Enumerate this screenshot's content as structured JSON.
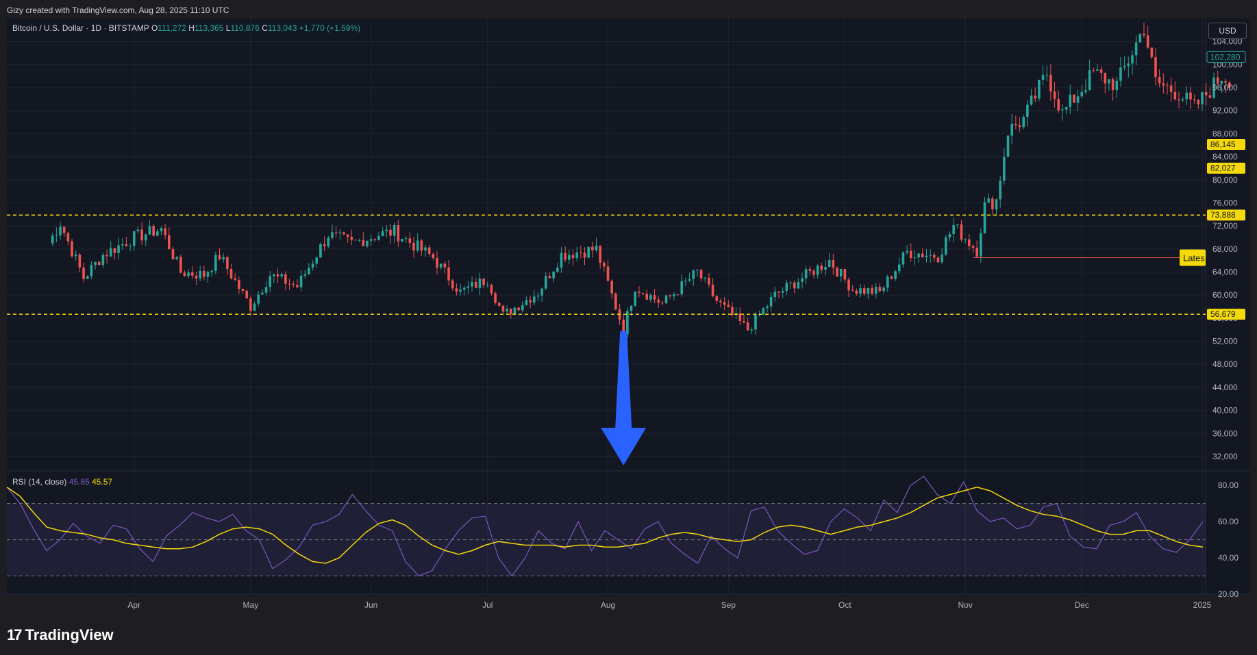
{
  "header": {
    "created_by": "Gizy created with TradingView.com, Aug 28, 2025 11:10 UTC"
  },
  "legend": {
    "symbol": "Bitcoin / U.S. Dollar · 1D · BITSTAMP",
    "open_label": "O",
    "open": "111,272",
    "high_label": "H",
    "high": "113,365",
    "low_label": "L",
    "low": "110,876",
    "close_label": "C",
    "close": "113,043",
    "change": "+1,770 (+1.59%)"
  },
  "currency_button": "USD",
  "rsi_legend": {
    "label": "RSI (14, close)",
    "rsi_value": "45.85",
    "ma_value": "45.57"
  },
  "brand": {
    "logo_text": "TradingView",
    "mark": "17"
  },
  "price_badges": {
    "current": "102,280",
    "level_86": "86,145",
    "level_82": "82,027",
    "level_73": "73,888",
    "level_56": "56,679"
  },
  "latest_marker": "Lates",
  "colors": {
    "up": "#26a69a",
    "down": "#ef5350",
    "level_line": "#f5d90a",
    "rsi_line": "#7e57c2",
    "rsi_ma": "#f5d90a",
    "arrow": "#2962ff",
    "current_price_badge": "#26a69a",
    "background": "#131722"
  },
  "chart_data": [
    {
      "type": "candlestick",
      "title": "Bitcoin / U.S. Dollar · 1D · BITSTAMP",
      "xlabel": "",
      "ylabel": "USD",
      "x_tick_labels": [
        "Apr",
        "May",
        "Jun",
        "Jul",
        "Aug",
        "Sep",
        "Oct",
        "Nov",
        "Dec",
        "2025"
      ],
      "y_tick_labels": [
        "32,000",
        "36,000",
        "40,000",
        "44,000",
        "48,000",
        "52,000",
        "56,000",
        "60,000",
        "64,000",
        "68,000",
        "72,000",
        "76,000",
        "80,000",
        "84,000",
        "88,000",
        "92,000",
        "96,000",
        "100,000",
        "104,000"
      ],
      "ylim": [
        29500,
        108000
      ],
      "grid": true,
      "horizontal_levels": [
        73888,
        56679
      ],
      "annotation_levels": [
        86145,
        82027
      ],
      "latest_line_value": 66500,
      "arrow": {
        "at_date": "2024-08-05",
        "direction": "down"
      },
      "anchors": [
        {
          "date": "2024-03-10",
          "value": 69000
        },
        {
          "date": "2024-03-13",
          "value": 72500
        },
        {
          "date": "2024-03-19",
          "value": 63000
        },
        {
          "date": "2024-03-24",
          "value": 67000
        },
        {
          "date": "2024-04-01",
          "value": 70000
        },
        {
          "date": "2024-04-08",
          "value": 71500
        },
        {
          "date": "2024-04-13",
          "value": 64000
        },
        {
          "date": "2024-04-19",
          "value": 63500
        },
        {
          "date": "2024-04-23",
          "value": 66800
        },
        {
          "date": "2024-05-01",
          "value": 58000
        },
        {
          "date": "2024-05-06",
          "value": 63500
        },
        {
          "date": "2024-05-13",
          "value": 61500
        },
        {
          "date": "2024-05-21",
          "value": 70500
        },
        {
          "date": "2024-05-27",
          "value": 69000
        },
        {
          "date": "2024-06-03",
          "value": 70500
        },
        {
          "date": "2024-06-07",
          "value": 71000
        },
        {
          "date": "2024-06-17",
          "value": 66500
        },
        {
          "date": "2024-06-24",
          "value": 60500
        },
        {
          "date": "2024-07-01",
          "value": 62800
        },
        {
          "date": "2024-07-05",
          "value": 56500
        },
        {
          "date": "2024-07-14",
          "value": 60500
        },
        {
          "date": "2024-07-20",
          "value": 67000
        },
        {
          "date": "2024-07-29",
          "value": 68000
        },
        {
          "date": "2024-08-05",
          "value": 54000
        },
        {
          "date": "2024-08-08",
          "value": 61500
        },
        {
          "date": "2024-08-15",
          "value": 58500
        },
        {
          "date": "2024-08-24",
          "value": 64000
        },
        {
          "date": "2024-08-29",
          "value": 59000
        },
        {
          "date": "2024-09-06",
          "value": 54000
        },
        {
          "date": "2024-09-13",
          "value": 60000
        },
        {
          "date": "2024-09-20",
          "value": 63000
        },
        {
          "date": "2024-09-27",
          "value": 66000
        },
        {
          "date": "2024-10-03",
          "value": 61000
        },
        {
          "date": "2024-10-10",
          "value": 60500
        },
        {
          "date": "2024-10-17",
          "value": 67500
        },
        {
          "date": "2024-10-25",
          "value": 66800
        },
        {
          "date": "2024-10-29",
          "value": 72000
        },
        {
          "date": "2024-11-04",
          "value": 67800
        },
        {
          "date": "2024-11-06",
          "value": 75500
        },
        {
          "date": "2024-11-09",
          "value": 76500
        },
        {
          "date": "2024-11-12",
          "value": 88500
        },
        {
          "date": "2024-11-16",
          "value": 90500
        },
        {
          "date": "2024-11-22",
          "value": 98500
        },
        {
          "date": "2024-11-26",
          "value": 91500
        },
        {
          "date": "2024-12-04",
          "value": 98500
        },
        {
          "date": "2024-12-10",
          "value": 96500
        },
        {
          "date": "2024-12-17",
          "value": 106500
        },
        {
          "date": "2024-12-20",
          "value": 97000
        },
        {
          "date": "2024-12-26",
          "value": 95000
        },
        {
          "date": "2024-12-30",
          "value": 92500
        },
        {
          "date": "2025-01-06",
          "value": 98000
        },
        {
          "date": "2025-01-08",
          "value": 97500
        }
      ]
    },
    {
      "type": "line",
      "title": "RSI (14, close)",
      "xlabel": "",
      "ylabel": "",
      "y_tick_labels": [
        "20.00",
        "40.00",
        "60.00",
        "80.00"
      ],
      "ylim": [
        20,
        88
      ],
      "bands": [
        30,
        50,
        70
      ],
      "series": [
        {
          "name": "RSI",
          "values": [
            79,
            70,
            56,
            44,
            50,
            59,
            52,
            48,
            58,
            56,
            45,
            38,
            52,
            58,
            65,
            62,
            60,
            64,
            55,
            50,
            34,
            39,
            46,
            58,
            60,
            64,
            75,
            66,
            58,
            55,
            38,
            30,
            33,
            45,
            55,
            62,
            63,
            40,
            30,
            40,
            55,
            48,
            45,
            60,
            44,
            55,
            50,
            45,
            56,
            60,
            48,
            42,
            37,
            52,
            45,
            40,
            66,
            68,
            55,
            48,
            42,
            44,
            60,
            67,
            62,
            55,
            72,
            65,
            80,
            85,
            75,
            70,
            82,
            66,
            60,
            62,
            56,
            58,
            68,
            70,
            52,
            46,
            45,
            58,
            60,
            65,
            52,
            45,
            43,
            50,
            60
          ]
        },
        {
          "name": "RSI-based MA",
          "values": [
            79,
            74,
            65,
            57,
            55,
            54,
            53,
            51,
            50,
            48,
            47,
            46,
            45,
            45,
            46,
            49,
            53,
            56,
            57,
            56,
            53,
            47,
            42,
            38,
            37,
            40,
            47,
            54,
            59,
            61,
            58,
            52,
            47,
            44,
            42,
            44,
            47,
            49,
            48,
            47,
            47,
            47,
            46,
            47,
            47,
            46,
            46,
            47,
            48,
            51,
            53,
            54,
            53,
            51,
            50,
            49,
            50,
            54,
            57,
            58,
            57,
            55,
            53,
            55,
            57,
            58,
            60,
            62,
            65,
            69,
            73,
            75,
            77,
            79,
            77,
            73,
            69,
            66,
            64,
            63,
            61,
            58,
            55,
            53,
            53,
            55,
            55,
            52,
            49,
            47,
            46
          ]
        }
      ]
    }
  ]
}
